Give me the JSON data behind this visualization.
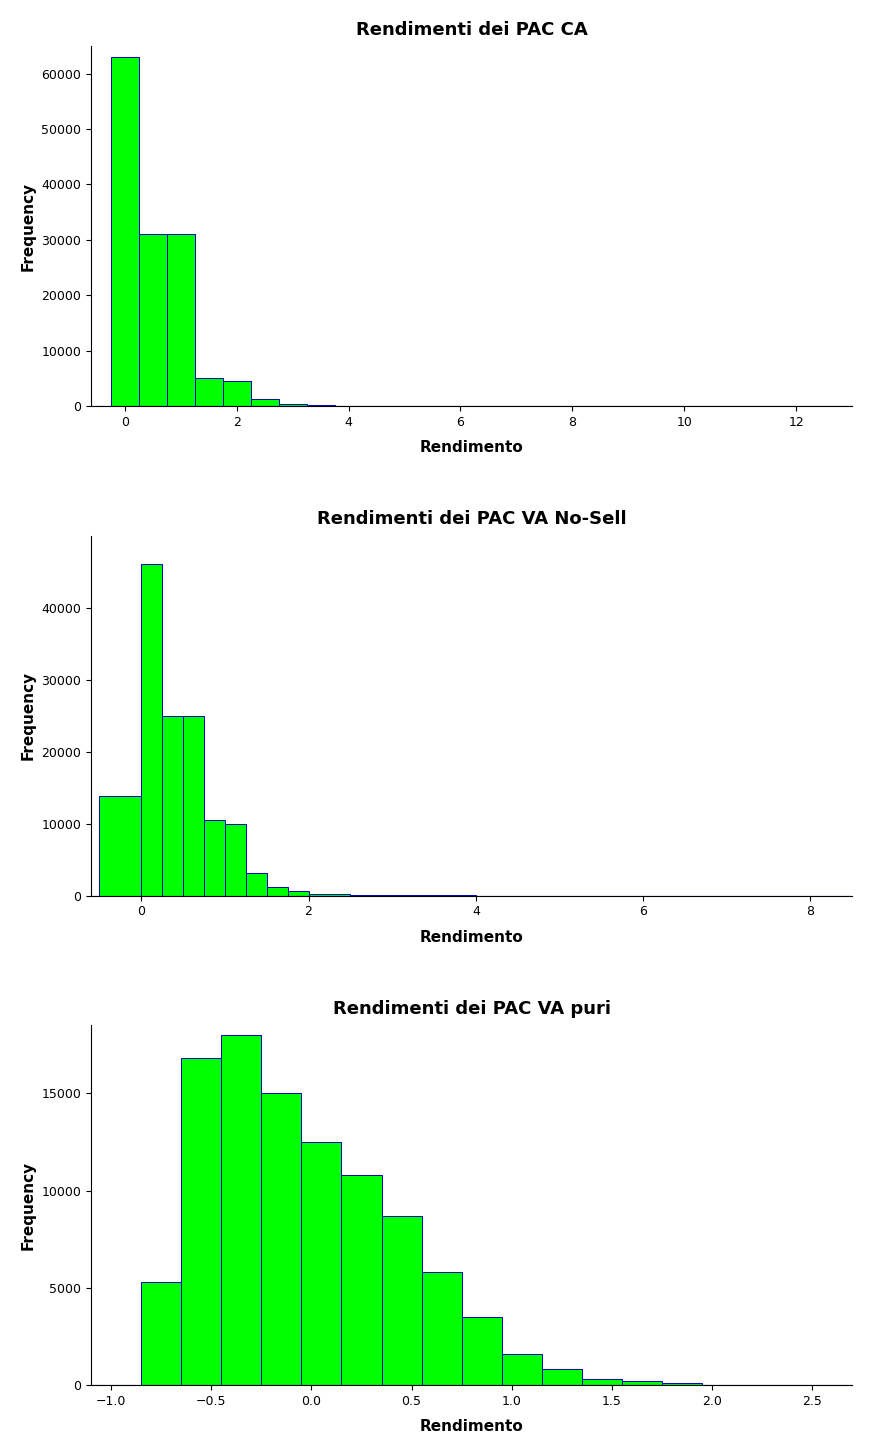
{
  "chart1": {
    "title": "Rendimenti dei PAC CA",
    "xlabel": "Rendimento",
    "ylabel": "Frequency",
    "bar_color": "#00FF00",
    "edge_color": "#0000CD",
    "xlim": [
      -0.6,
      13.0
    ],
    "ylim": [
      0,
      65000
    ],
    "xticks": [
      0,
      2,
      4,
      6,
      8,
      10,
      12
    ],
    "yticks": [
      0,
      10000,
      20000,
      30000,
      40000,
      50000,
      60000
    ],
    "bin_edges": [
      -0.25,
      0.25,
      0.75,
      1.25,
      1.75,
      2.25,
      2.75,
      3.25,
      3.75,
      4.25,
      5.0,
      6.0,
      7.0,
      8.0,
      9.0,
      10.0,
      11.0,
      12.0,
      13.0
    ],
    "bar_heights": [
      63000,
      31000,
      31000,
      5000,
      4500,
      1200,
      400,
      200,
      100,
      50,
      30,
      15,
      8,
      5,
      3,
      2,
      1,
      0
    ]
  },
  "chart2": {
    "title": "Rendimenti dei PAC VA No-Sell",
    "xlabel": "Rendimento",
    "ylabel": "Frequency",
    "bar_color": "#00FF00",
    "edge_color": "#0000CD",
    "xlim": [
      -0.6,
      8.5
    ],
    "ylim": [
      0,
      50000
    ],
    "xticks": [
      0,
      2,
      4,
      6,
      8
    ],
    "yticks": [
      0,
      10000,
      20000,
      30000,
      40000
    ],
    "bin_edges": [
      -0.5,
      0.0,
      0.25,
      0.5,
      0.75,
      1.0,
      1.25,
      1.5,
      1.75,
      2.0,
      2.5,
      3.0,
      3.5,
      4.0,
      5.0,
      6.0,
      7.0,
      8.0,
      8.5
    ],
    "bar_heights": [
      13800,
      46000,
      25000,
      25000,
      10500,
      10000,
      3200,
      1200,
      600,
      300,
      150,
      80,
      40,
      20,
      10,
      5,
      2,
      0
    ]
  },
  "chart3": {
    "title": "Rendimenti dei PAC VA puri",
    "xlabel": "Rendimento",
    "ylabel": "Frequency",
    "bar_color": "#00FF00",
    "edge_color": "#0000CD",
    "xlim": [
      -1.1,
      2.7
    ],
    "ylim": [
      0,
      18500
    ],
    "xticks": [
      -1.0,
      -0.5,
      0.0,
      0.5,
      1.0,
      1.5,
      2.0,
      2.5
    ],
    "yticks": [
      0,
      5000,
      10000,
      15000
    ],
    "bin_edges": [
      -0.85,
      -0.65,
      -0.45,
      -0.25,
      -0.05,
      0.15,
      0.35,
      0.55,
      0.75,
      0.95,
      1.15,
      1.35,
      1.55,
      1.75,
      1.95,
      2.15,
      2.35,
      2.55
    ],
    "bar_heights": [
      5300,
      16800,
      18000,
      15000,
      12500,
      10800,
      8700,
      5800,
      3500,
      1600,
      850,
      300,
      200,
      100,
      30,
      10,
      0
    ]
  },
  "background_color": "#FFFFFF",
  "title_fontsize": 13,
  "label_fontsize": 11,
  "tick_fontsize": 9,
  "figure_width": 8.73,
  "figure_height": 14.55
}
